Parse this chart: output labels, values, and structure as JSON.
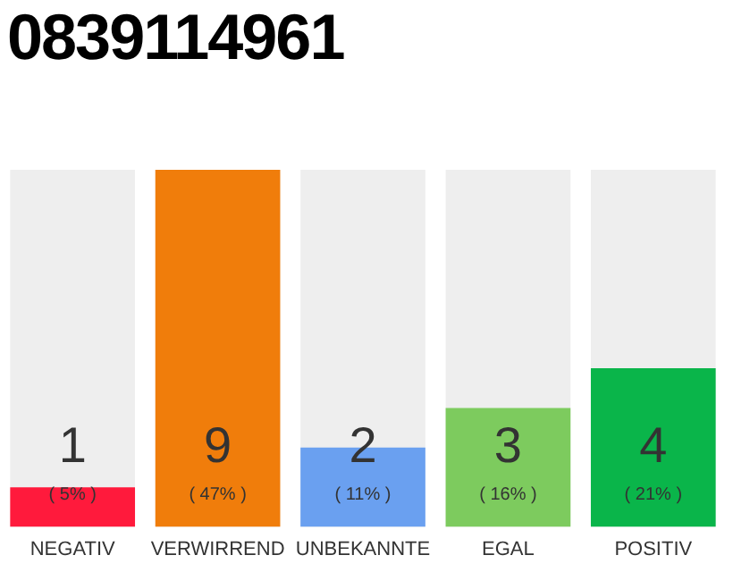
{
  "chart_data": {
    "type": "bar",
    "title": "0839114961",
    "categories": [
      "NEGATIV",
      "VERWIRREND",
      "UNBEKANNTE",
      "EGAL",
      "POSITIV"
    ],
    "values": [
      1,
      9,
      2,
      3,
      4
    ],
    "colors": [
      "#ff1a3c",
      "#f07d0b",
      "#6aa0f0",
      "#7dcb5e",
      "#0ab54a"
    ],
    "ylim": [
      0,
      9
    ],
    "tick_labels": "x",
    "data_labels": true,
    "grid": false,
    "legend": false,
    "annotations": [
      "( 5% )",
      "( 47% )",
      "( 11% )",
      "( 16% )",
      "( 21% )"
    ]
  }
}
